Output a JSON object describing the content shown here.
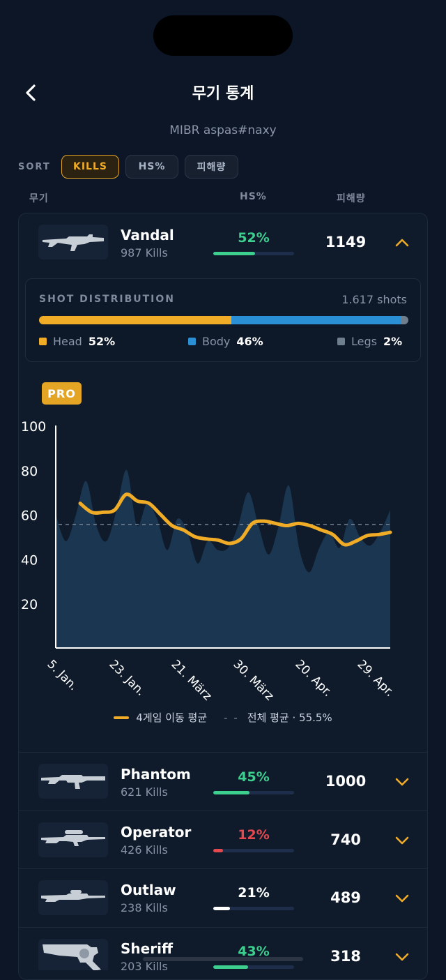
{
  "header": {
    "title": "무기 통계",
    "subtitle": "MIBR aspas#naxy"
  },
  "sort": {
    "label": "SORT",
    "options": [
      "KILLS",
      "HS%",
      "피해량"
    ],
    "active": "KILLS"
  },
  "columns": {
    "weapon": "무기",
    "hs": "HS%",
    "damage": "피해량"
  },
  "weapons": [
    {
      "name": "Vandal",
      "kills": "987 Kills",
      "hs": "52%",
      "hs_value": 0.52,
      "hs_color": "#3ccf8e",
      "damage": "1149",
      "expanded": true
    },
    {
      "name": "Phantom",
      "kills": "621 Kills",
      "hs": "45%",
      "hs_value": 0.45,
      "hs_color": "#3ccf8e",
      "damage": "1000",
      "expanded": false
    },
    {
      "name": "Operator",
      "kills": "426 Kills",
      "hs": "12%",
      "hs_value": 0.12,
      "hs_color": "#e5484d",
      "damage": "740",
      "expanded": false
    },
    {
      "name": "Outlaw",
      "kills": "238 Kills",
      "hs": "21%",
      "hs_value": 0.21,
      "hs_color": "#ffffff",
      "damage": "489",
      "expanded": false
    },
    {
      "name": "Sheriff",
      "kills": "203 Kills",
      "hs": "43%",
      "hs_value": 0.43,
      "hs_color": "#3ccf8e",
      "damage": "318",
      "expanded": false
    }
  ],
  "shot_distribution": {
    "title": "SHOT DISTRIBUTION",
    "shots": "1.617 shots",
    "parts": [
      {
        "label": "Head",
        "value": "52%",
        "fraction": 0.52,
        "color": "#f0ac27"
      },
      {
        "label": "Body",
        "value": "46%",
        "fraction": 0.46,
        "color": "#2b8fd6"
      },
      {
        "label": "Legs",
        "value": "2%",
        "fraction": 0.02,
        "color": "#6f7f8e"
      }
    ]
  },
  "pro_badge": "PRO",
  "chart_legend": {
    "moving_avg": "4게임 이동 평균",
    "overall": "전체 평균 · 55.5%"
  },
  "chart_data": {
    "type": "area",
    "x_tick_labels": [
      "5. Jan.",
      "23. Jan.",
      "21. März",
      "30. März",
      "20. Apr.",
      "29. Apr."
    ],
    "y_ticks": [
      20,
      40,
      60,
      80,
      100
    ],
    "ylim": [
      0,
      100
    ],
    "overall_average": 55.5,
    "series": [
      {
        "name": "",
        "values": [
          60,
          48,
          60,
          75,
          55,
          48,
          62,
          80,
          55,
          65,
          58,
          44,
          58,
          52,
          38,
          48,
          44,
          45,
          55,
          70,
          55,
          42,
          55,
          73,
          45,
          34,
          45,
          52,
          45,
          58,
          50,
          46,
          52,
          62
        ]
      },
      {
        "name": "4게임 이동 평균",
        "values": [
          65,
          61,
          61,
          62,
          69,
          66,
          65,
          60,
          55,
          53,
          50,
          49,
          48.5,
          47,
          49,
          56,
          57,
          56,
          55,
          56,
          55,
          53,
          51,
          46.5,
          48,
          50.5,
          51,
          52
        ]
      }
    ]
  }
}
